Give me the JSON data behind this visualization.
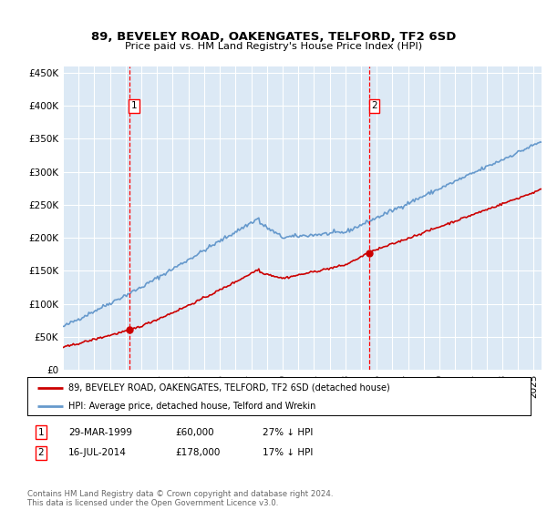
{
  "title": "89, BEVELEY ROAD, OAKENGATES, TELFORD, TF2 6SD",
  "subtitle": "Price paid vs. HM Land Registry's House Price Index (HPI)",
  "sale1_date": 1999.24,
  "sale1_price": 60000,
  "sale1_label": "1",
  "sale1_text": "29-MAR-1999",
  "sale1_price_text": "£60,000",
  "sale1_hpi_text": "27% ↓ HPI",
  "sale2_date": 2014.54,
  "sale2_price": 178000,
  "sale2_label": "2",
  "sale2_text": "16-JUL-2014",
  "sale2_price_text": "£178,000",
  "sale2_hpi_text": "17% ↓ HPI",
  "legend_property": "89, BEVELEY ROAD, OAKENGATES, TELFORD, TF2 6SD (detached house)",
  "legend_hpi": "HPI: Average price, detached house, Telford and Wrekin",
  "footer": "Contains HM Land Registry data © Crown copyright and database right 2024.\nThis data is licensed under the Open Government Licence v3.0.",
  "property_color": "#cc0000",
  "hpi_color": "#6699cc",
  "background_color": "#dce9f5",
  "xmin": 1995,
  "xmax": 2025.5,
  "ymin": 0,
  "ymax": 460000
}
